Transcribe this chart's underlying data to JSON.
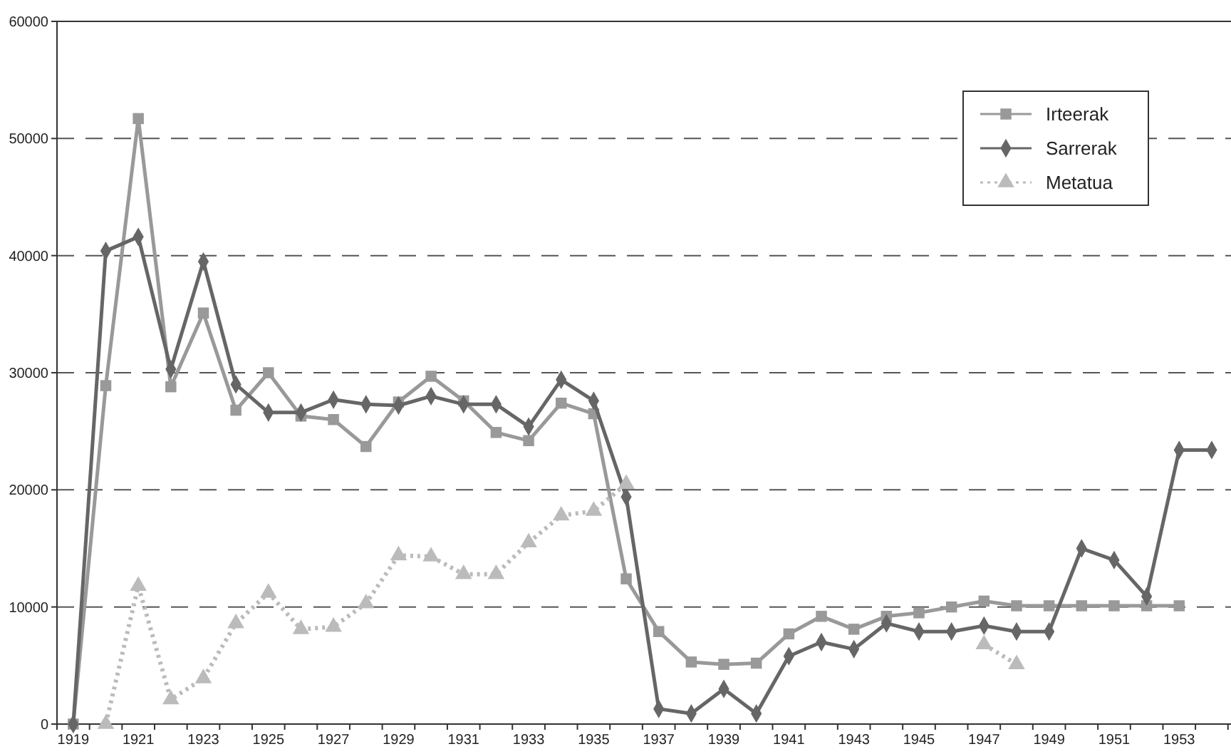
{
  "chart_data": {
    "type": "line",
    "categories": [
      "1919",
      null,
      "1921",
      null,
      "1923",
      null,
      "1925",
      null,
      "1927",
      null,
      "1929",
      null,
      "1931",
      null,
      "1933",
      null,
      "1935",
      null,
      "1937",
      null,
      "1939",
      null,
      "1941",
      null,
      "1943",
      null,
      "1945",
      null,
      "1947",
      null,
      "1949",
      null,
      "1951",
      null,
      "1953",
      null
    ],
    "series": [
      {
        "name": "Irteerak",
        "color": "#999999",
        "marker": "square",
        "line_style": "solid",
        "values": [
          0,
          28900,
          51700,
          28800,
          35100,
          26800,
          30000,
          26300,
          26000,
          23700,
          27500,
          29700,
          27600,
          24900,
          24200,
          27400,
          26500,
          12400,
          7900,
          5300,
          5100,
          5200,
          7700,
          9200,
          8100,
          9200,
          9500,
          10000,
          10500,
          10100,
          10100,
          10100,
          10100,
          10100,
          10100,
          null
        ]
      },
      {
        "name": "Sarrerak",
        "color": "#666666",
        "marker": "diamond",
        "line_style": "solid",
        "values": [
          0,
          40400,
          41600,
          30300,
          39500,
          29000,
          26600,
          26600,
          27700,
          27300,
          27200,
          28000,
          27300,
          27300,
          25400,
          29400,
          27600,
          19400,
          1300,
          900,
          3000,
          900,
          5800,
          7000,
          6400,
          8600,
          7900,
          7900,
          8400,
          7900,
          7900,
          15000,
          14000,
          10900,
          23400,
          23400
        ]
      },
      {
        "name": "Metatua",
        "color": "#bbbbbb",
        "marker": "triangle",
        "line_style": "dotted",
        "values": [
          null,
          0,
          11800,
          2100,
          3900,
          8600,
          11200,
          8100,
          8300,
          10300,
          14400,
          14300,
          12800,
          12800,
          15500,
          17800,
          18200,
          20500,
          null,
          null,
          null,
          null,
          null,
          null,
          null,
          null,
          null,
          null,
          6800,
          5100,
          null,
          null,
          null,
          null,
          null,
          null
        ]
      }
    ],
    "ylim": [
      0,
      60000
    ],
    "yticks": [
      0,
      10000,
      20000,
      30000,
      40000,
      50000,
      60000
    ],
    "grid": "y",
    "legend": "top right"
  }
}
